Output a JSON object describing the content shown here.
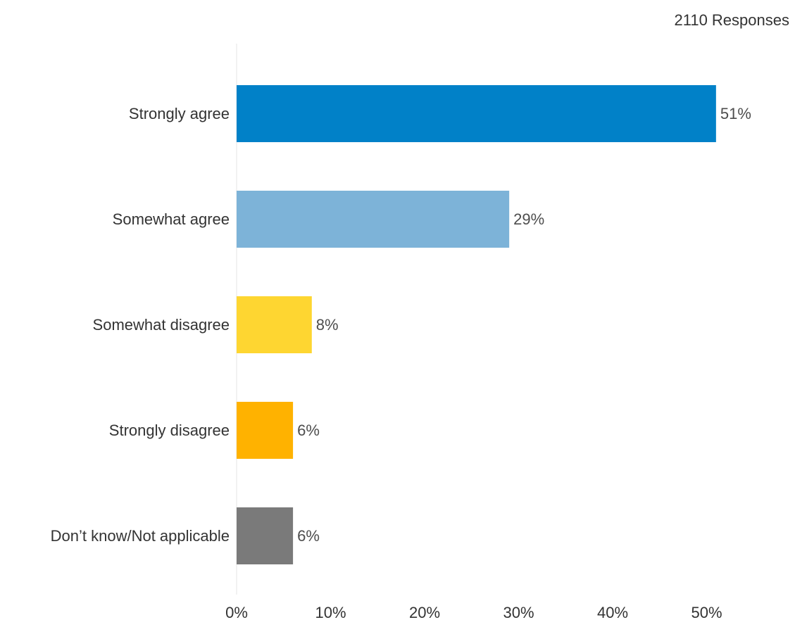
{
  "header": {
    "responses": "2110 Responses"
  },
  "chart_data": {
    "type": "bar",
    "orientation": "horizontal",
    "categories": [
      "Strongly agree",
      "Somewhat agree",
      "Somewhat disagree",
      "Strongly disagree",
      "Don’t know/Not applicable"
    ],
    "values": [
      51,
      29,
      8,
      6,
      6
    ],
    "value_labels": [
      "51%",
      "29%",
      "8%",
      "6%",
      "6%"
    ],
    "colors": [
      "#0181c8",
      "#7db3d8",
      "#fed631",
      "#ffb200",
      "#7a7a7a"
    ],
    "xlim": [
      0,
      55
    ],
    "x_ticks": [
      0,
      10,
      20,
      30,
      40,
      50
    ],
    "x_tick_labels": [
      "0%",
      "10%",
      "20%",
      "30%",
      "40%",
      "50%"
    ],
    "grid": false
  }
}
